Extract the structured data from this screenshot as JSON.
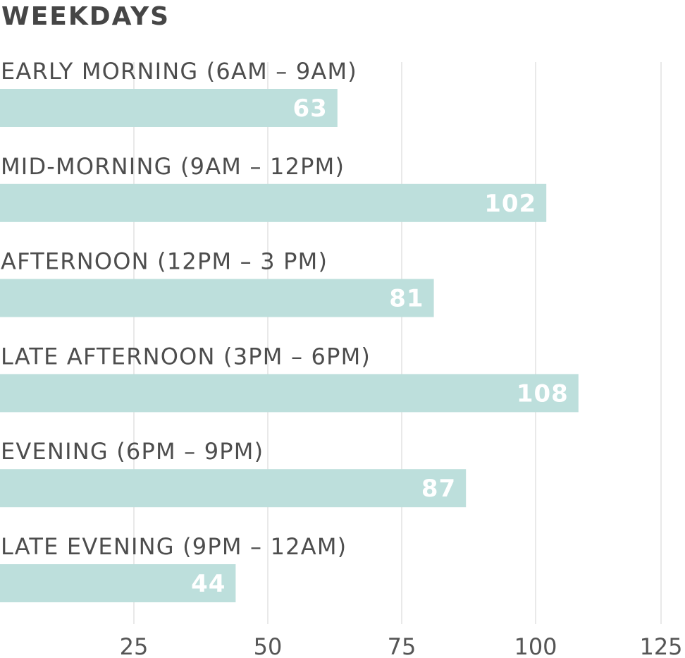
{
  "chart_data": {
    "type": "bar",
    "orientation": "horizontal",
    "title": "WEEKDAYS",
    "categories": [
      "EARLY MORNING (6AM – 9AM)",
      "MID-MORNING (9AM – 12PM)",
      "AFTERNOON (12PM – 3 PM)",
      "LATE AFTERNOON (3PM – 6PM)",
      "EVENING (6PM – 9PM)",
      "LATE EVENING (9PM – 12AM)"
    ],
    "values": [
      63,
      102,
      81,
      108,
      87,
      44
    ],
    "xlim": [
      0,
      125
    ],
    "xticks": [
      25,
      50,
      75,
      100,
      125
    ],
    "xtick_labels": [
      "25",
      "50",
      "75",
      "100",
      "125"
    ],
    "xlabel": "",
    "ylabel": "",
    "grid": true,
    "legend": "none",
    "colors": {
      "bar": "#bddfdc",
      "bar_label": "#ffffff",
      "category_label": "#4d4d4d",
      "title": "#464646",
      "grid": "#e2e2e2",
      "tick_label": "#555555"
    }
  }
}
